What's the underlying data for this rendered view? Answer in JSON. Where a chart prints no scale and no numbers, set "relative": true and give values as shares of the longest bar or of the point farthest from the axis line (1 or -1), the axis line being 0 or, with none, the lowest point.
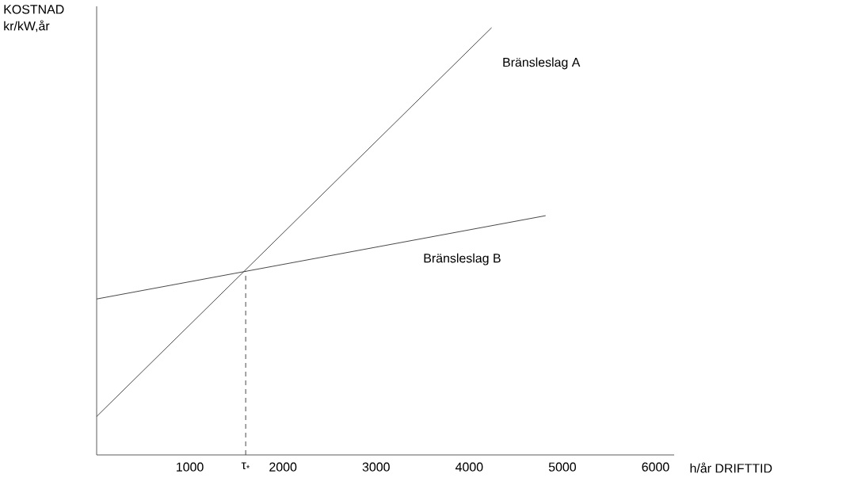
{
  "chart_data": {
    "type": "line",
    "relative": true,
    "ylabel": "KOSTNAD kr/kW,år",
    "xlabel": "h/år DRIFTTID",
    "xlim": [
      0,
      6200
    ],
    "xticks": [
      1000,
      {
        "value": 1600,
        "label": "τ$_{*}$"
      },
      2000,
      3000,
      4000,
      5000,
      6000
    ],
    "series": [
      {
        "name": "Bränsleslag A",
        "color": "#333333",
        "x": [
          0,
          4240
        ],
        "values": [
          0.09,
          1.0
        ]
      },
      {
        "name": "Bränsleslag B",
        "color": "#333333",
        "x": [
          0,
          4820
        ],
        "values": [
          0.365,
          0.56
        ]
      },
      {
        "color": "#333333",
        "x": [
          1600,
          1600
        ],
        "values": [
          0,
          0.43
        ],
        "line_style": "dashed"
      }
    ]
  }
}
